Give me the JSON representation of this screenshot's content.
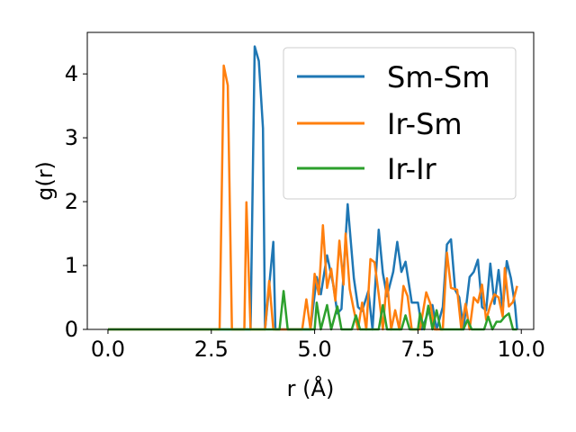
{
  "chart_data": {
    "type": "line",
    "title": "",
    "xlabel": "r (Å)",
    "ylabel": "g(r)",
    "xlim": [
      -0.5,
      10.3
    ],
    "ylim": [
      0,
      4.65
    ],
    "xticks": [
      0.0,
      2.5,
      5.0,
      7.5,
      10.0
    ],
    "xtick_labels": [
      "0.0",
      "2.5",
      "5.0",
      "7.5",
      "10.0"
    ],
    "yticks": [
      0,
      1,
      2,
      3,
      4
    ],
    "ytick_labels": [
      "0",
      "1",
      "2",
      "3",
      "4"
    ],
    "grid": false,
    "legend_position": "top-right",
    "series": [
      {
        "name": "Sm-Sm",
        "color": "#1f77b4",
        "points": [
          [
            0.0,
            0
          ],
          [
            3.45,
            0
          ],
          [
            3.55,
            4.43
          ],
          [
            3.65,
            4.2
          ],
          [
            3.75,
            3.15
          ],
          [
            3.8,
            0
          ],
          [
            3.9,
            0.68
          ],
          [
            4.0,
            1.37
          ],
          [
            4.05,
            0
          ],
          [
            4.9,
            0
          ],
          [
            5.05,
            0.82
          ],
          [
            5.15,
            0.55
          ],
          [
            5.3,
            1.16
          ],
          [
            5.45,
            0.7
          ],
          [
            5.55,
            0.25
          ],
          [
            5.65,
            0.32
          ],
          [
            5.8,
            1.96
          ],
          [
            5.95,
            0.8
          ],
          [
            6.05,
            0.35
          ],
          [
            6.15,
            0.29
          ],
          [
            6.3,
            0.6
          ],
          [
            6.4,
            0
          ],
          [
            6.55,
            1.56
          ],
          [
            6.65,
            0.88
          ],
          [
            6.75,
            0.52
          ],
          [
            6.9,
            0.9
          ],
          [
            7.0,
            1.37
          ],
          [
            7.1,
            0.9
          ],
          [
            7.2,
            1.06
          ],
          [
            7.35,
            0.42
          ],
          [
            7.5,
            0.42
          ],
          [
            7.6,
            0
          ],
          [
            7.75,
            0.28
          ],
          [
            7.85,
            0.38
          ],
          [
            7.95,
            0
          ],
          [
            8.1,
            0.35
          ],
          [
            8.2,
            1.33
          ],
          [
            8.3,
            1.41
          ],
          [
            8.4,
            0.62
          ],
          [
            8.5,
            0.5
          ],
          [
            8.6,
            0
          ],
          [
            8.75,
            0.82
          ],
          [
            8.85,
            0.9
          ],
          [
            8.95,
            1.09
          ],
          [
            9.05,
            0.35
          ],
          [
            9.15,
            0.3
          ],
          [
            9.25,
            1.03
          ],
          [
            9.35,
            0.4
          ],
          [
            9.45,
            0.93
          ],
          [
            9.55,
            0.3
          ],
          [
            9.65,
            1.07
          ],
          [
            9.75,
            0.8
          ],
          [
            9.85,
            0.37
          ],
          [
            9.9,
            0
          ]
        ]
      },
      {
        "name": "Ir-Sm",
        "color": "#ff7f0e",
        "points": [
          [
            0.0,
            0
          ],
          [
            2.7,
            0
          ],
          [
            2.8,
            4.13
          ],
          [
            2.9,
            3.82
          ],
          [
            3.0,
            0
          ],
          [
            3.3,
            0
          ],
          [
            3.35,
            1.99
          ],
          [
            3.45,
            0
          ],
          [
            3.8,
            0
          ],
          [
            3.9,
            0.76
          ],
          [
            4.0,
            0
          ],
          [
            4.7,
            0
          ],
          [
            4.8,
            0.47
          ],
          [
            4.9,
            0
          ],
          [
            5.0,
            0.87
          ],
          [
            5.1,
            0.55
          ],
          [
            5.2,
            1.63
          ],
          [
            5.3,
            0.65
          ],
          [
            5.4,
            0.95
          ],
          [
            5.5,
            0.45
          ],
          [
            5.6,
            1.39
          ],
          [
            5.7,
            0.7
          ],
          [
            5.75,
            1.5
          ],
          [
            5.85,
            0.63
          ],
          [
            5.95,
            0.3
          ],
          [
            6.05,
            0
          ],
          [
            6.15,
            0.42
          ],
          [
            6.25,
            0
          ],
          [
            6.35,
            1.1
          ],
          [
            6.45,
            1.05
          ],
          [
            6.55,
            0.55
          ],
          [
            6.65,
            0
          ],
          [
            6.75,
            0.8
          ],
          [
            6.85,
            0
          ],
          [
            6.95,
            0.3
          ],
          [
            7.05,
            0
          ],
          [
            7.15,
            0.68
          ],
          [
            7.25,
            0.52
          ],
          [
            7.35,
            0
          ],
          [
            7.55,
            0
          ],
          [
            7.7,
            0.58
          ],
          [
            7.8,
            0.4
          ],
          [
            7.9,
            0
          ],
          [
            8.1,
            0
          ],
          [
            8.2,
            1.2
          ],
          [
            8.3,
            0.65
          ],
          [
            8.45,
            0.62
          ],
          [
            8.55,
            0
          ],
          [
            8.65,
            0.4
          ],
          [
            8.75,
            0
          ],
          [
            8.85,
            0.5
          ],
          [
            8.95,
            0.42
          ],
          [
            9.05,
            0.7
          ],
          [
            9.15,
            0.15
          ],
          [
            9.25,
            0.38
          ],
          [
            9.35,
            0.55
          ],
          [
            9.45,
            0.5
          ],
          [
            9.55,
            0.2
          ],
          [
            9.6,
            0.96
          ],
          [
            9.7,
            0.36
          ],
          [
            9.8,
            0.43
          ],
          [
            9.9,
            0.68
          ]
        ]
      },
      {
        "name": "Ir-Ir",
        "color": "#2ca02c",
        "points": [
          [
            0.0,
            0
          ],
          [
            4.15,
            0
          ],
          [
            4.25,
            0.6
          ],
          [
            4.35,
            0
          ],
          [
            5.0,
            0
          ],
          [
            5.05,
            0.42
          ],
          [
            5.15,
            0
          ],
          [
            5.3,
            0.38
          ],
          [
            5.4,
            0
          ],
          [
            5.55,
            0.36
          ],
          [
            5.65,
            0
          ],
          [
            5.9,
            0
          ],
          [
            6.0,
            0.22
          ],
          [
            6.1,
            0
          ],
          [
            6.55,
            0
          ],
          [
            6.65,
            0.38
          ],
          [
            6.75,
            0
          ],
          [
            7.1,
            0
          ],
          [
            7.2,
            0.22
          ],
          [
            7.3,
            0
          ],
          [
            7.5,
            0
          ],
          [
            7.55,
            0.25
          ],
          [
            7.65,
            0
          ],
          [
            7.75,
            0.37
          ],
          [
            7.85,
            0
          ],
          [
            7.95,
            0.3
          ],
          [
            8.05,
            0
          ],
          [
            8.6,
            0
          ],
          [
            8.7,
            0.15
          ],
          [
            8.8,
            0
          ],
          [
            9.1,
            0
          ],
          [
            9.2,
            0.2
          ],
          [
            9.3,
            0
          ],
          [
            9.4,
            0.12
          ],
          [
            9.5,
            0.12
          ],
          [
            9.6,
            0.2
          ],
          [
            9.7,
            0.25
          ],
          [
            9.8,
            0
          ],
          [
            9.9,
            0
          ]
        ]
      }
    ]
  }
}
